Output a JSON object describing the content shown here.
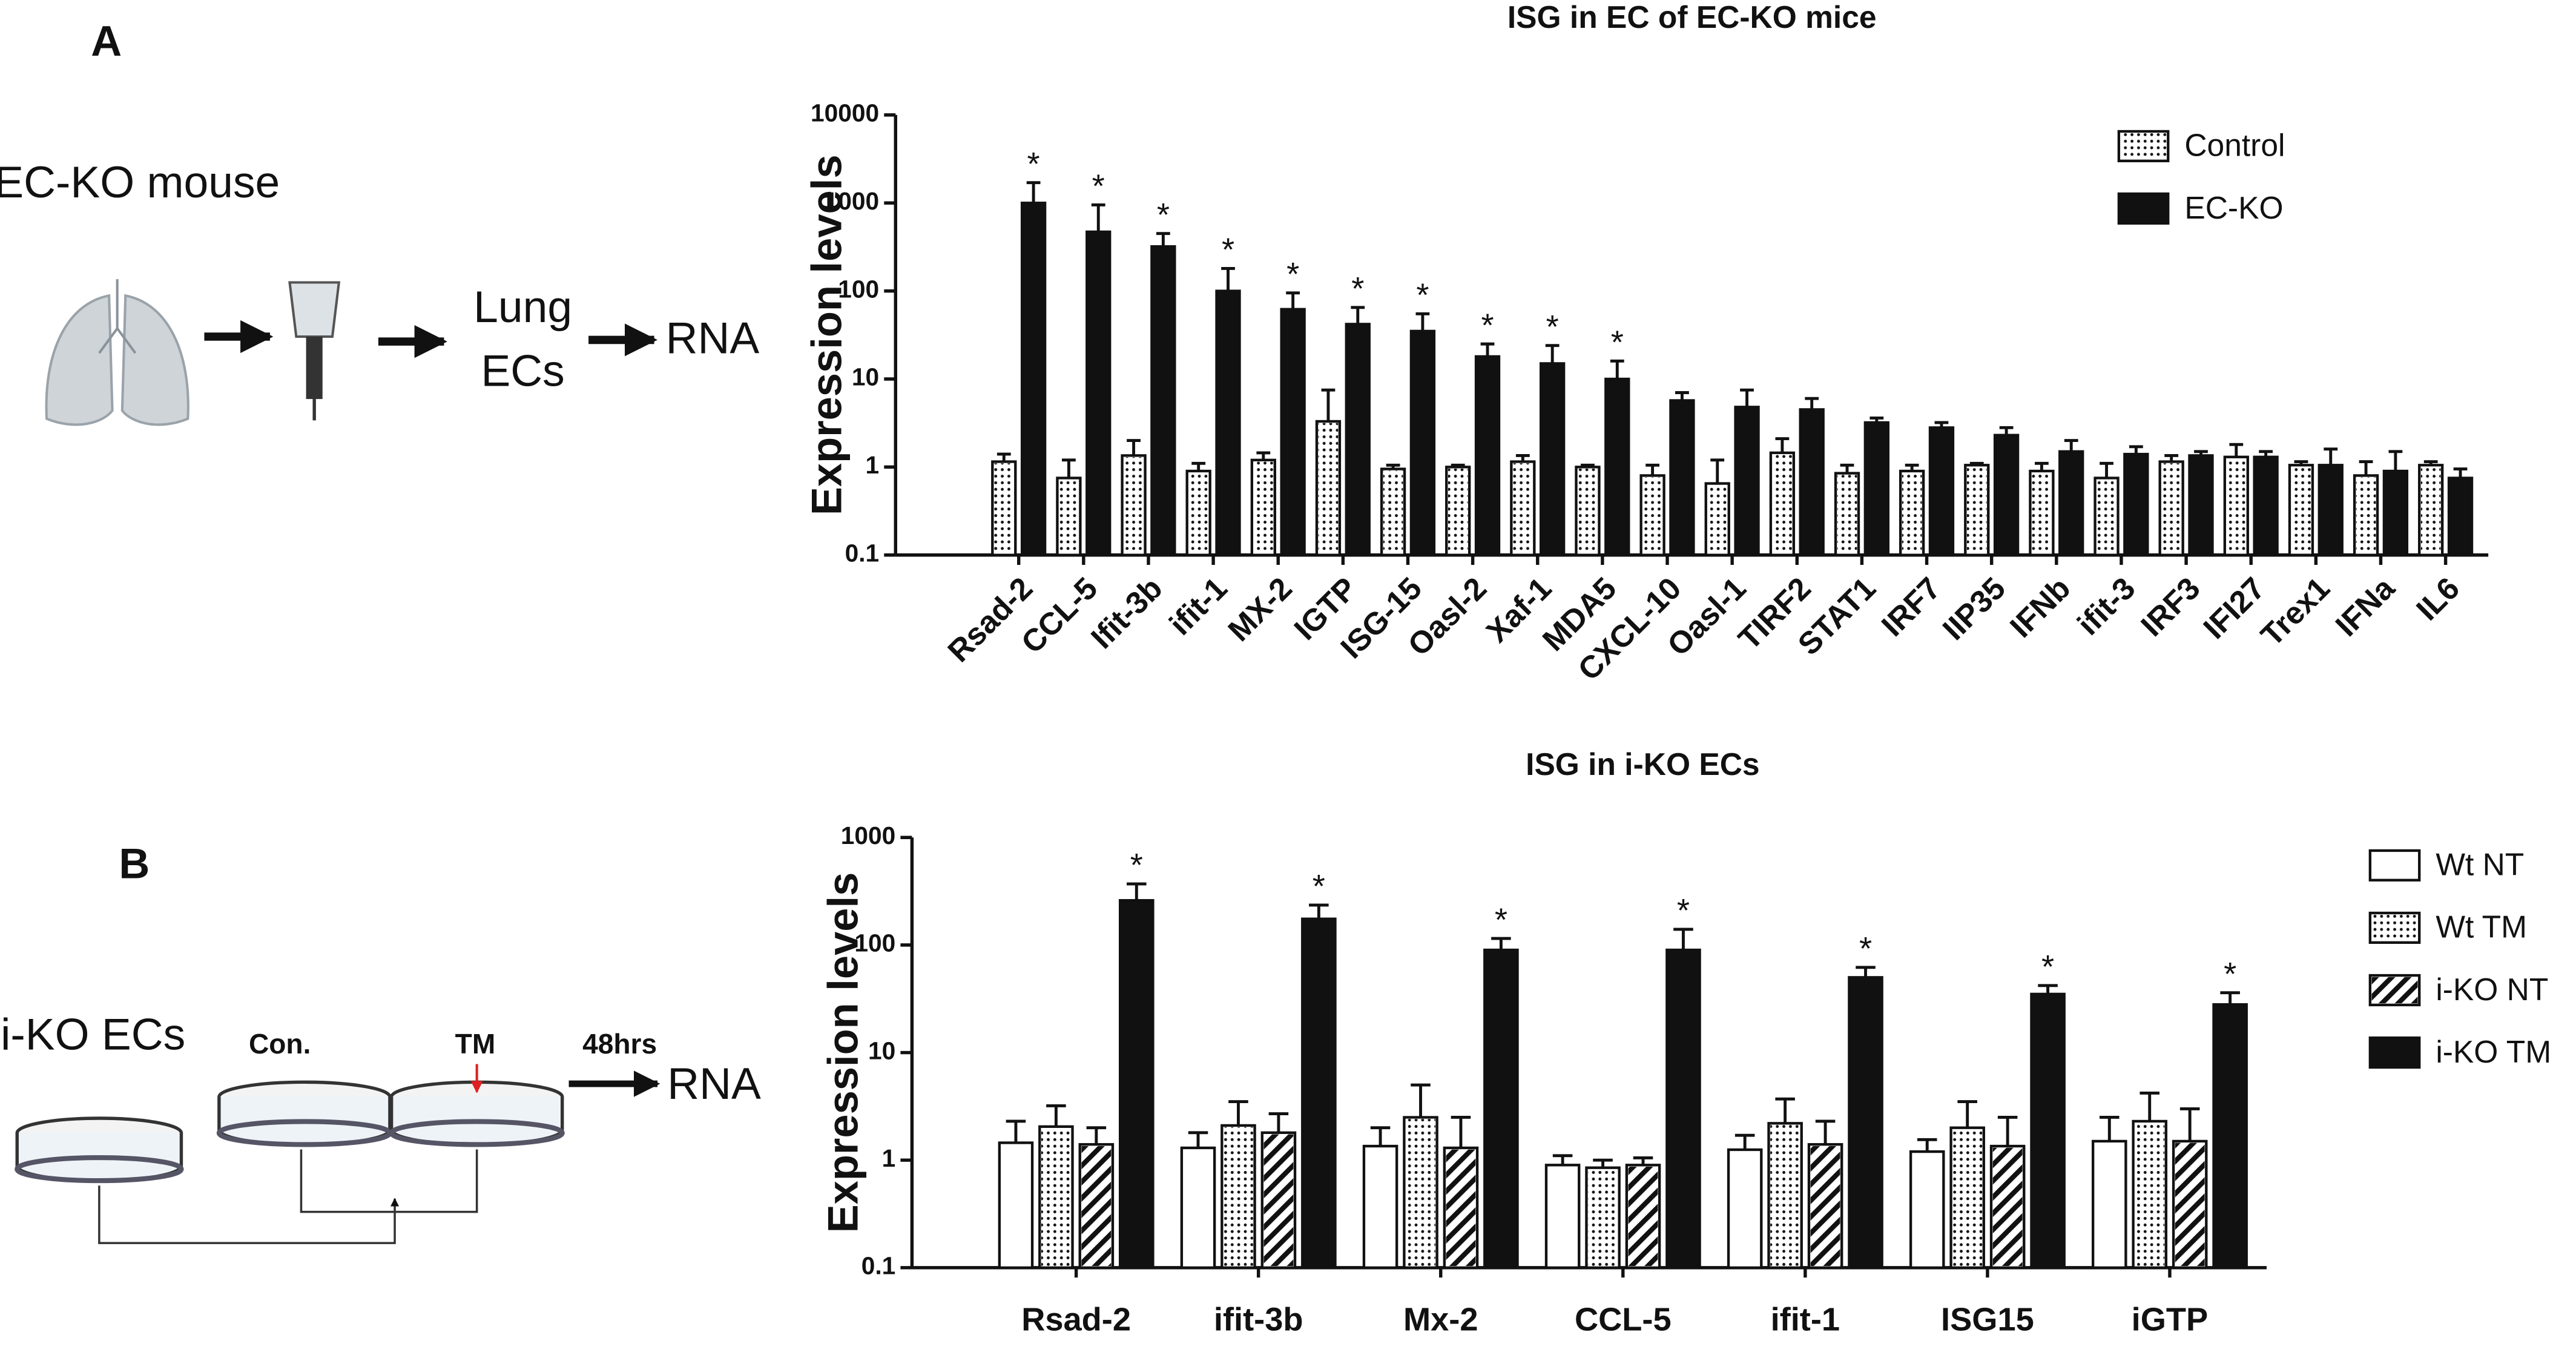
{
  "diagram_a": {
    "label": "A",
    "title": "EC-KO mouse",
    "lung": [
      "Lung",
      "ECs"
    ],
    "output": "RNA"
  },
  "diagram_b": {
    "label": "B",
    "title": "i-KO ECs",
    "control": "Con.",
    "treatment": "TM",
    "time": "48hrs",
    "output": "RNA"
  },
  "chart_data": [
    {
      "type": "bar",
      "title": "ISG in EC of EC-KO mice",
      "y_label": "Expression levels",
      "log_scale": true,
      "ylim": [
        0.1,
        10000
      ],
      "yticks": [
        0.1,
        1,
        10,
        100,
        1000,
        10000
      ],
      "legend": "upper right",
      "categories": [
        "Rsad-2",
        "CCL-5",
        "Ifit-3b",
        "ifit-1",
        "MX-2",
        "IGTP",
        "ISG-15",
        "Oasl-2",
        "Xaf-1",
        "MDA5",
        "CXCL-10",
        "Oasl-1",
        "TIRF2",
        "STAT1",
        "IRF7",
        "IIP35",
        "IFNb",
        "ifit-3",
        "IRF3",
        "IFI27",
        "Trex1",
        "IFNa",
        "IL6"
      ],
      "series": [
        {
          "name": "Control",
          "color": "#ffffff",
          "pattern": "dots",
          "values": [
            1.15,
            0.75,
            1.35,
            0.9,
            1.2,
            3.3,
            0.95,
            1.0,
            1.15,
            1.0,
            0.8,
            0.65,
            1.45,
            0.85,
            0.9,
            1.05,
            0.9,
            0.75,
            1.15,
            1.3,
            1.05,
            0.8,
            1.05
          ],
          "errors": [
            0.25,
            0.45,
            0.65,
            0.2,
            0.25,
            4.2,
            0.1,
            0.05,
            0.2,
            0.05,
            0.25,
            0.55,
            0.65,
            0.2,
            0.15,
            0.05,
            0.2,
            0.35,
            0.2,
            0.5,
            0.1,
            0.35,
            0.1
          ]
        },
        {
          "name": "EC-KO",
          "color": "#111111",
          "values": [
            1000,
            470,
            320,
            100,
            62,
            42,
            35,
            18,
            15,
            10,
            5.7,
            4.8,
            4.5,
            3.2,
            2.8,
            2.3,
            1.5,
            1.4,
            1.35,
            1.3,
            1.05,
            0.9,
            0.75
          ],
          "errors": [
            700,
            480,
            130,
            80,
            33,
            23,
            20,
            7,
            9,
            6,
            1.3,
            2.7,
            1.5,
            0.4,
            0.4,
            0.5,
            0.5,
            0.3,
            0.15,
            0.2,
            0.55,
            0.6,
            0.2
          ],
          "annotations": [
            "*",
            "*",
            "*",
            "*",
            "*",
            "*",
            "*",
            "*",
            "*",
            "*",
            null,
            null,
            null,
            null,
            null,
            null,
            null,
            null,
            null,
            null,
            null,
            null,
            null
          ]
        }
      ]
    },
    {
      "type": "bar",
      "title": "ISG in i-KO ECs",
      "y_label": "Expression levels",
      "log_scale": true,
      "ylim": [
        0.1,
        1000
      ],
      "yticks": [
        0.1,
        1,
        10,
        100,
        1000
      ],
      "legend": "right",
      "categories": [
        "Rsad-2",
        "ifit-3b",
        "Mx-2",
        "CCL-5",
        "ifit-1",
        "ISG15",
        "iGTP"
      ],
      "series": [
        {
          "name": "Wt NT",
          "color": "#ffffff",
          "values": [
            1.45,
            1.3,
            1.35,
            0.9,
            1.25,
            1.2,
            1.5
          ],
          "errors": [
            0.85,
            0.5,
            0.65,
            0.2,
            0.45,
            0.35,
            1.0
          ]
        },
        {
          "name": "Wt TM",
          "color": "#ffffff",
          "pattern": "dots",
          "values": [
            2.05,
            2.1,
            2.5,
            0.85,
            2.2,
            2.0,
            2.3
          ],
          "errors": [
            1.15,
            1.4,
            2.5,
            0.15,
            1.5,
            1.5,
            1.9
          ]
        },
        {
          "name": "i-KO NT",
          "color": "#ffffff",
          "pattern": "hatch",
          "values": [
            1.4,
            1.8,
            1.3,
            0.9,
            1.4,
            1.35,
            1.5
          ],
          "errors": [
            0.6,
            0.9,
            1.2,
            0.15,
            0.9,
            1.15,
            1.5
          ]
        },
        {
          "name": "i-KO TM",
          "color": "#111111",
          "values": [
            260,
            175,
            90,
            90,
            50,
            35,
            28
          ],
          "errors": [
            110,
            60,
            25,
            50,
            12,
            7,
            8
          ],
          "annotations": [
            "*",
            "*",
            "*",
            "*",
            "*",
            "*",
            "*"
          ]
        }
      ]
    }
  ]
}
